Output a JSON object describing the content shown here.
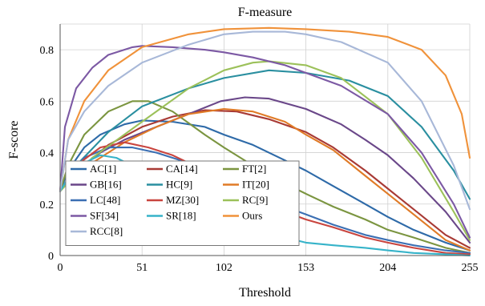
{
  "chart_data": {
    "type": "line",
    "title": "F-measure",
    "xlabel": "Threshold",
    "ylabel": "F-score",
    "xlim": [
      0,
      255
    ],
    "ylim": [
      0,
      0.9
    ],
    "xticks": [
      0,
      51,
      102,
      153,
      204,
      255
    ],
    "yticks": [
      0,
      0.2,
      0.4,
      0.6,
      0.8
    ],
    "grid": true,
    "legend_position": "lower-left",
    "series": [
      {
        "name": "AC[1]",
        "color": "#2e6aa8",
        "x": [
          0,
          5,
          15,
          25,
          40,
          51,
          70,
          90,
          102,
          120,
          140,
          153,
          170,
          190,
          204,
          220,
          240,
          255
        ],
        "y": [
          0.25,
          0.33,
          0.42,
          0.47,
          0.51,
          0.525,
          0.52,
          0.5,
          0.47,
          0.43,
          0.37,
          0.33,
          0.27,
          0.2,
          0.15,
          0.1,
          0.05,
          0.02
        ]
      },
      {
        "name": "CA[14]",
        "color": "#a83a35",
        "x": [
          0,
          5,
          15,
          30,
          51,
          70,
          90,
          110,
          130,
          153,
          170,
          190,
          204,
          220,
          240,
          255
        ],
        "y": [
          0.25,
          0.29,
          0.35,
          0.43,
          0.5,
          0.54,
          0.565,
          0.56,
          0.53,
          0.48,
          0.42,
          0.33,
          0.26,
          0.18,
          0.08,
          0.03
        ]
      },
      {
        "name": "FT[2]",
        "color": "#7b9540",
        "x": [
          0,
          5,
          15,
          30,
          45,
          55,
          70,
          90,
          102,
          120,
          140,
          153,
          170,
          190,
          204,
          220,
          240,
          255
        ],
        "y": [
          0.25,
          0.35,
          0.47,
          0.56,
          0.6,
          0.6,
          0.56,
          0.47,
          0.42,
          0.35,
          0.28,
          0.24,
          0.19,
          0.14,
          0.1,
          0.07,
          0.03,
          0.01
        ]
      },
      {
        "name": "GB[16]",
        "color": "#6a4789",
        "x": [
          0,
          10,
          25,
          40,
          60,
          80,
          100,
          115,
          130,
          153,
          175,
          190,
          204,
          220,
          240,
          255
        ],
        "y": [
          0.25,
          0.33,
          0.4,
          0.45,
          0.5,
          0.55,
          0.6,
          0.615,
          0.61,
          0.57,
          0.51,
          0.45,
          0.39,
          0.3,
          0.17,
          0.05
        ]
      },
      {
        "name": "HC[9]",
        "color": "#2a8fa0",
        "x": [
          0,
          10,
          30,
          51,
          80,
          102,
          130,
          153,
          180,
          204,
          225,
          245,
          255
        ],
        "y": [
          0.25,
          0.35,
          0.48,
          0.58,
          0.65,
          0.69,
          0.72,
          0.71,
          0.68,
          0.62,
          0.5,
          0.33,
          0.22
        ]
      },
      {
        "name": "IT[20]",
        "color": "#e07b27",
        "x": [
          0,
          10,
          25,
          40,
          60,
          80,
          102,
          120,
          140,
          153,
          170,
          190,
          204,
          220,
          240,
          255
        ],
        "y": [
          0.25,
          0.32,
          0.38,
          0.44,
          0.5,
          0.55,
          0.57,
          0.56,
          0.52,
          0.47,
          0.41,
          0.31,
          0.24,
          0.16,
          0.06,
          0.02
        ]
      },
      {
        "name": "LC[48]",
        "color": "#3b6fb3",
        "x": [
          0,
          5,
          15,
          30,
          45,
          60,
          80,
          102,
          120,
          140,
          153,
          170,
          190,
          204,
          220,
          240,
          255
        ],
        "y": [
          0.25,
          0.3,
          0.38,
          0.42,
          0.42,
          0.4,
          0.36,
          0.3,
          0.25,
          0.19,
          0.16,
          0.12,
          0.08,
          0.06,
          0.04,
          0.02,
          0.01
        ]
      },
      {
        "name": "MZ[30]",
        "color": "#c9453f",
        "x": [
          0,
          10,
          25,
          40,
          55,
          70,
          90,
          102,
          120,
          140,
          153,
          170,
          190,
          204,
          220,
          240,
          255
        ],
        "y": [
          0.25,
          0.35,
          0.42,
          0.44,
          0.42,
          0.39,
          0.33,
          0.28,
          0.22,
          0.17,
          0.14,
          0.11,
          0.07,
          0.05,
          0.03,
          0.01,
          0.005
        ]
      },
      {
        "name": "RC[9]",
        "color": "#9cc15a",
        "x": [
          0,
          20,
          51,
          80,
          102,
          120,
          130,
          153,
          175,
          204,
          225,
          245,
          255
        ],
        "y": [
          0.25,
          0.38,
          0.52,
          0.65,
          0.72,
          0.75,
          0.755,
          0.74,
          0.69,
          0.55,
          0.38,
          0.17,
          0.06
        ]
      },
      {
        "name": "SF[34]",
        "color": "#7c59a4",
        "x": [
          0,
          3,
          10,
          20,
          30,
          45,
          51,
          70,
          90,
          102,
          120,
          140,
          153,
          175,
          204,
          225,
          245,
          255
        ],
        "y": [
          0.25,
          0.5,
          0.65,
          0.73,
          0.78,
          0.81,
          0.815,
          0.81,
          0.8,
          0.79,
          0.77,
          0.74,
          0.71,
          0.66,
          0.55,
          0.4,
          0.2,
          0.07
        ]
      },
      {
        "name": "SR[18]",
        "color": "#36b3c9",
        "x": [
          0,
          5,
          15,
          25,
          35,
          51,
          70,
          90,
          102,
          120,
          140,
          153,
          170,
          190,
          204,
          220,
          240,
          255
        ],
        "y": [
          0.25,
          0.3,
          0.36,
          0.39,
          0.38,
          0.33,
          0.25,
          0.17,
          0.14,
          0.1,
          0.07,
          0.05,
          0.04,
          0.03,
          0.02,
          0.01,
          0.005,
          0
        ]
      },
      {
        "name": "Ours",
        "color": "#f0923a",
        "x": [
          0,
          5,
          15,
          30,
          51,
          80,
          102,
          130,
          153,
          180,
          204,
          225,
          240,
          250,
          255
        ],
        "y": [
          0.25,
          0.45,
          0.6,
          0.72,
          0.81,
          0.86,
          0.88,
          0.885,
          0.88,
          0.87,
          0.85,
          0.8,
          0.7,
          0.55,
          0.38
        ]
      },
      {
        "name": "RCC[8]",
        "color": "#a8b8d8",
        "x": [
          0,
          5,
          15,
          30,
          51,
          80,
          102,
          120,
          140,
          153,
          175,
          204,
          225,
          245,
          255
        ],
        "y": [
          0.25,
          0.45,
          0.56,
          0.66,
          0.75,
          0.82,
          0.86,
          0.87,
          0.87,
          0.86,
          0.83,
          0.75,
          0.6,
          0.35,
          0.18
        ]
      }
    ]
  }
}
